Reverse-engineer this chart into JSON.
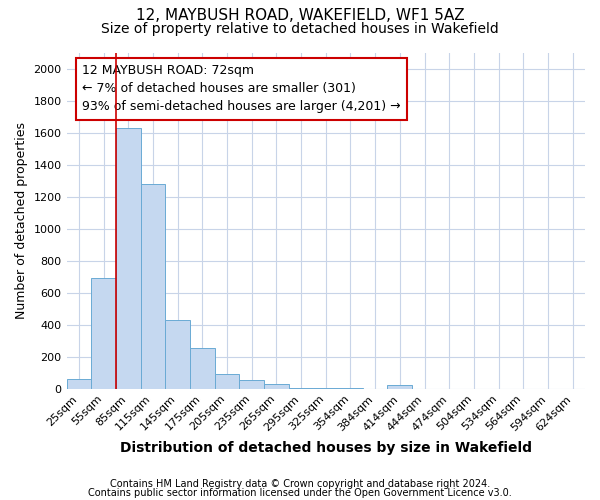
{
  "title1": "12, MAYBUSH ROAD, WAKEFIELD, WF1 5AZ",
  "title2": "Size of property relative to detached houses in Wakefield",
  "xlabel": "Distribution of detached houses by size in Wakefield",
  "ylabel": "Number of detached properties",
  "footnote1": "Contains HM Land Registry data © Crown copyright and database right 2024.",
  "footnote2": "Contains public sector information licensed under the Open Government Licence v3.0.",
  "categories": [
    "25sqm",
    "55sqm",
    "85sqm",
    "115sqm",
    "145sqm",
    "175sqm",
    "205sqm",
    "235sqm",
    "265sqm",
    "295sqm",
    "325sqm",
    "354sqm",
    "384sqm",
    "414sqm",
    "444sqm",
    "474sqm",
    "504sqm",
    "534sqm",
    "564sqm",
    "594sqm",
    "624sqm"
  ],
  "values": [
    60,
    695,
    1630,
    1280,
    430,
    255,
    90,
    55,
    30,
    5,
    5,
    5,
    2,
    25,
    1,
    1,
    1,
    1,
    1,
    1,
    1
  ],
  "bar_color": "#c5d8f0",
  "bar_edge_color": "#6aaad4",
  "vline_x": 1.5,
  "vline_color": "#cc0000",
  "annotation_text": "12 MAYBUSH ROAD: 72sqm\n← 7% of detached houses are smaller (301)\n93% of semi-detached houses are larger (4,201) →",
  "annotation_box_color": "#cc0000",
  "ylim": [
    0,
    2100
  ],
  "yticks": [
    0,
    200,
    400,
    600,
    800,
    1000,
    1200,
    1400,
    1600,
    1800,
    2000
  ],
  "bg_color": "#ffffff",
  "grid_color": "#c8d4e8",
  "title1_fontsize": 11,
  "title2_fontsize": 10,
  "xlabel_fontsize": 10,
  "ylabel_fontsize": 9,
  "tick_fontsize": 8,
  "ann_fontsize": 9,
  "footnote_fontsize": 7
}
